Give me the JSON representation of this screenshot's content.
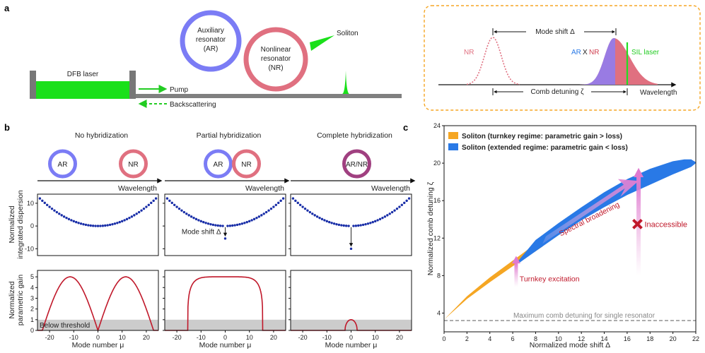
{
  "panels": {
    "a": "a",
    "b": "b",
    "c": "c"
  },
  "schematic": {
    "dfb_laser": "DFB laser",
    "aux_resonator": [
      "Auxiliary",
      "resonator",
      "(AR)"
    ],
    "nonlinear_resonator": [
      "Nonlinear",
      "resonator",
      "(NR)"
    ],
    "soliton": "Soliton",
    "pump": "Pump",
    "backscattering": "Backscattering"
  },
  "inset": {
    "nr_label": "NR",
    "mode_shift": "Mode shift Δ",
    "ar_label": "AR",
    "x_label": "X",
    "nr2_label": "NR",
    "sil_laser": "SIL laser",
    "comb_detuning": "Comb detuning ζ",
    "wavelength": "Wavelength"
  },
  "panel_b": {
    "columns": [
      {
        "title": "No hybridization",
        "rings": [
          "AR",
          "NR"
        ],
        "delta": 0,
        "gain": "full"
      },
      {
        "title": "Partial hybridization",
        "rings": [
          "AR",
          "NR"
        ],
        "delta": -5.5,
        "gain": "partial"
      },
      {
        "title": "Complete hybridization",
        "rings": [
          "AR/NR"
        ],
        "delta": -10,
        "gain": "small"
      }
    ],
    "wavelength_label": "Wavelength",
    "ylabel_top": [
      "Normalized",
      "integrated dispersion"
    ],
    "ylabel_bottom": [
      "Normalized",
      "parametric gain"
    ],
    "xlabel": "Mode number μ",
    "mode_shift_label": "Mode shift Δ",
    "below_threshold": "Below threshold",
    "dispersion_yticks": [
      "10",
      "0",
      "-10"
    ],
    "gain_yticks": [
      "5",
      "4",
      "3",
      "2",
      "1",
      "0"
    ],
    "xticks": [
      "-20",
      "-10",
      "0",
      "10",
      "20"
    ],
    "threshold": 1
  },
  "chart_data": {
    "type": "area",
    "title": "",
    "xlabel": "Normalized mode shift Δ",
    "ylabel": "Normalized comb detuning ζ",
    "xlim": [
      0,
      22
    ],
    "ylim": [
      2,
      24
    ],
    "xticks": [
      "0",
      "2",
      "4",
      "6",
      "8",
      "10",
      "12",
      "14",
      "16",
      "18",
      "20",
      "22"
    ],
    "yticks": [
      "4",
      "8",
      "12",
      "16",
      "20",
      "24"
    ],
    "series": [
      {
        "name": "Soliton (turnkey regime: parametric gain > loss)",
        "color": "#f5a623",
        "x": [
          0,
          2,
          4,
          6,
          7,
          8,
          8.6
        ],
        "upper": [
          3.3,
          5.8,
          7.8,
          9.6,
          10.5,
          11.4,
          12.0
        ],
        "lower": [
          3.3,
          5.5,
          7.3,
          9.0,
          9.8,
          10.6,
          11.1
        ]
      },
      {
        "name": "Soliton (extended regime: parametric gain < loss)",
        "color": "#2979e6",
        "x": [
          6.5,
          8,
          10,
          12,
          14,
          16,
          18,
          20,
          21,
          21.6,
          22
        ],
        "upper": [
          9.6,
          11.8,
          13.6,
          15.3,
          16.9,
          18.3,
          19.4,
          20.2,
          20.4,
          20.4,
          20.1
        ],
        "lower": [
          9.3,
          10.6,
          12.3,
          13.9,
          15.3,
          16.6,
          17.7,
          18.8,
          19.3,
          19.6,
          20.0
        ]
      }
    ],
    "threshold_line": {
      "y": 3.2,
      "label": "Maximum comb detuning for single resonator"
    },
    "annotations": {
      "turnkey": "Turnkey excitation",
      "broadening": "Spectral broadening",
      "inaccessible": "Inaccessible",
      "inaccessible_point": {
        "x": 16.9,
        "y": 13.5
      }
    },
    "legend_position": "top-left"
  }
}
